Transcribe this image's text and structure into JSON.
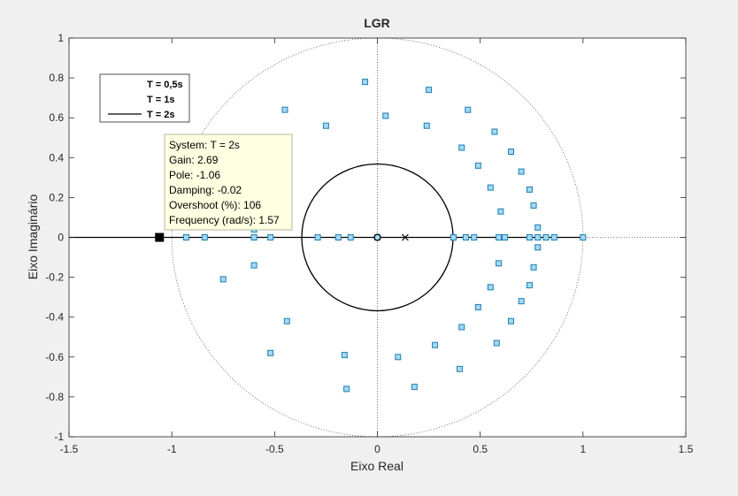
{
  "chart_data": {
    "type": "scatter",
    "title": "LGR",
    "xlabel": "Eixo Real",
    "ylabel": "Eixo Imaginário",
    "xlim": [
      -1.5,
      1.5
    ],
    "ylim": [
      -1,
      1
    ],
    "grid": false,
    "xticks": [
      "-1.5",
      "-1",
      "-0.5",
      "0",
      "0.5",
      "1",
      "1.5"
    ],
    "yticks": [
      "1",
      "0.8",
      "0.6",
      "0.4",
      "0.2",
      "0",
      "-0.2",
      "-0.4",
      "-0.6",
      "-0.8",
      "-1"
    ],
    "legend": {
      "position": "top-left",
      "entries": [
        "T = 0,5s",
        "T = 1s",
        "T = 2s"
      ]
    },
    "unit_circle_dotted": true,
    "circle_radius": 0.368,
    "markers": {
      "open_circle": [
        [
          0,
          0
        ]
      ],
      "cross": [
        [
          0.135,
          0
        ]
      ],
      "selected_pole": [
        [
          -1.06,
          0
        ]
      ]
    },
    "points": [
      [
        -0.93,
        0
      ],
      [
        -0.84,
        0
      ],
      [
        -0.6,
        0
      ],
      [
        -0.52,
        0
      ],
      [
        -0.29,
        0
      ],
      [
        -0.19,
        0
      ],
      [
        -0.13,
        0
      ],
      [
        0.0,
        0
      ],
      [
        0.37,
        0
      ],
      [
        0.43,
        0
      ],
      [
        0.47,
        0
      ],
      [
        0.59,
        0
      ],
      [
        0.62,
        0
      ],
      [
        0.74,
        0
      ],
      [
        0.78,
        0
      ],
      [
        0.82,
        0
      ],
      [
        0.86,
        0
      ],
      [
        1.0,
        0
      ],
      [
        -0.06,
        0.78
      ],
      [
        0.25,
        0.74
      ],
      [
        -0.45,
        0.64
      ],
      [
        0.44,
        0.64
      ],
      [
        0.04,
        0.61
      ],
      [
        -0.25,
        0.56
      ],
      [
        0.24,
        0.56
      ],
      [
        0.57,
        0.53
      ],
      [
        0.41,
        0.45
      ],
      [
        0.65,
        0.43
      ],
      [
        0.49,
        0.36
      ],
      [
        0.7,
        0.33
      ],
      [
        0.55,
        0.25
      ],
      [
        0.74,
        0.24
      ],
      [
        0.6,
        0.13
      ],
      [
        0.76,
        0.16
      ],
      [
        0.78,
        0.05
      ],
      [
        -0.6,
        0.04
      ],
      [
        -0.6,
        -0.14
      ],
      [
        -0.75,
        -0.21
      ],
      [
        -0.44,
        -0.42
      ],
      [
        -0.52,
        -0.58
      ],
      [
        -0.16,
        -0.59
      ],
      [
        -0.15,
        -0.76
      ],
      [
        0.1,
        -0.6
      ],
      [
        0.28,
        -0.54
      ],
      [
        0.18,
        -0.75
      ],
      [
        0.4,
        -0.66
      ],
      [
        0.41,
        -0.45
      ],
      [
        0.49,
        -0.35
      ],
      [
        0.55,
        -0.25
      ],
      [
        0.58,
        -0.53
      ],
      [
        0.65,
        -0.42
      ],
      [
        0.7,
        -0.32
      ],
      [
        0.74,
        -0.24
      ],
      [
        0.76,
        -0.15
      ],
      [
        0.78,
        -0.05
      ],
      [
        0.59,
        -0.13
      ]
    ]
  },
  "datatip": {
    "lines": [
      "System: T = 2s",
      "Gain: 2.69",
      "Pole: -1.06",
      "Damping: -0.02",
      "Overshoot (%): 106",
      "Frequency (rad/s): 1.57"
    ]
  },
  "colors": {
    "marker_fill": "#a6d8f0",
    "marker_stroke": "#1a7fb5",
    "datatip_bg": "#ffffe1"
  }
}
